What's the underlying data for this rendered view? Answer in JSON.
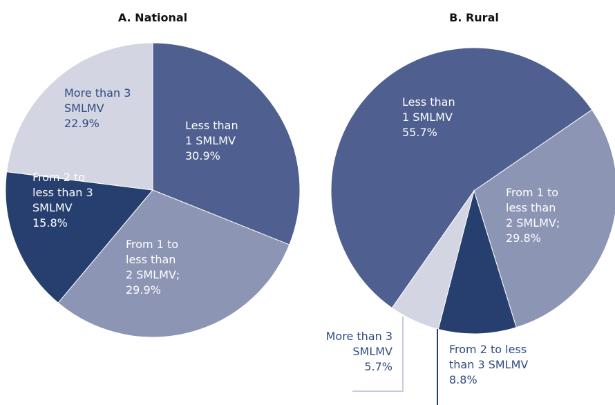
{
  "chart_data": [
    {
      "type": "pie",
      "title": "A. National",
      "categories": [
        "Less than\n1 SMLMV",
        "From 1 to\nless than\n2 SMLMV;",
        "From 2 to\nless than 3\nSMLMV",
        "More than 3\nSMLMV"
      ],
      "values": [
        30.9,
        29.9,
        15.8,
        22.9
      ],
      "value_labels": [
        "30.9%",
        "29.9%",
        "15.8%",
        "22.9%"
      ],
      "colors": [
        "#4f5f8f",
        "#8d95b4",
        "#263f6e",
        "#d3d5e3"
      ],
      "startangle": 0
    },
    {
      "type": "pie",
      "title": "B. Rural",
      "categories": [
        "Less than\n1 SMLMV",
        "From 1 to\nless than\n2 SMLMV;",
        "From 2 to less\nthan 3 SMLMV",
        "More than 3\nSMLMV"
      ],
      "values": [
        55.7,
        29.8,
        8.8,
        5.7
      ],
      "value_labels": [
        "55.7%",
        "29.8%",
        "8.8%",
        "5.7%"
      ],
      "colors": [
        "#4f5f8f",
        "#8d95b4",
        "#263f6e",
        "#d3d5e3"
      ],
      "startangle": 215
    }
  ]
}
